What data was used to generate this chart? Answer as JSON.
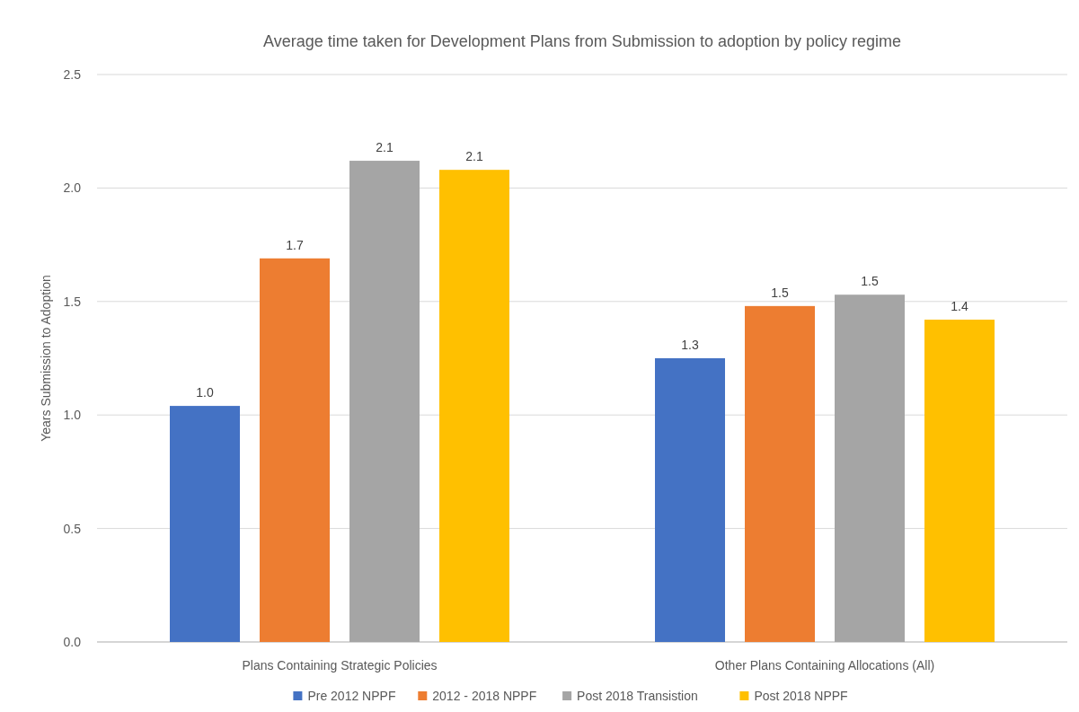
{
  "chart_data": {
    "type": "bar",
    "title": "Average time taken for Development Plans from Submission to adoption by policy regime",
    "ylabel": "Years Submission to Adoption",
    "categories": [
      "Plans Containing Strategic Policies",
      "Other Plans Containing Allocations (All)"
    ],
    "series": [
      {
        "name": "Pre 2012 NPPF",
        "color": "#4472c4",
        "values": [
          1.04,
          1.25
        ],
        "value_labels": [
          "1.0",
          "1.3"
        ]
      },
      {
        "name": "2012 - 2018 NPPF",
        "color": "#ed7d31",
        "values": [
          1.69,
          1.48
        ],
        "value_labels": [
          "1.7",
          "1.5"
        ]
      },
      {
        "name": "Post 2018 Transistion",
        "color": "#a5a5a5",
        "values": [
          2.12,
          1.53
        ],
        "value_labels": [
          "2.1",
          "1.5"
        ]
      },
      {
        "name": "Post 2018 NPPF",
        "color": "#ffc000",
        "values": [
          2.08,
          1.42
        ],
        "value_labels": [
          "2.1",
          "1.4"
        ]
      }
    ],
    "ylim": [
      0,
      2.5
    ],
    "yticks": [
      {
        "value": 0,
        "label": "0.0"
      },
      {
        "value": 0.5,
        "label": "0.5"
      },
      {
        "value": 1,
        "label": "1.0"
      },
      {
        "value": 1.5,
        "label": "1.5"
      },
      {
        "value": 2,
        "label": "2.0"
      },
      {
        "value": 2.5,
        "label": "2.5"
      }
    ],
    "grid": "y",
    "legend": "bottom"
  }
}
